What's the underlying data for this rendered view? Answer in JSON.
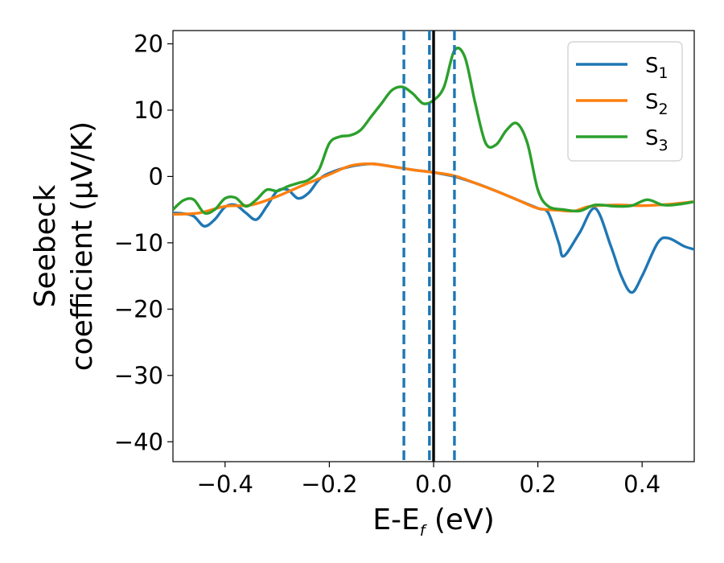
{
  "chart_data": {
    "type": "line",
    "xlabel": {
      "main": "E-E",
      "sub": "f",
      "unit": " (eV)"
    },
    "ylabel": {
      "line1": "Seebeck",
      "line2": "coefficient  (μV/K)"
    },
    "xlim": [
      -0.5,
      0.5
    ],
    "ylim": [
      -43,
      22
    ],
    "xticks": [
      -0.4,
      -0.2,
      0.0,
      0.2,
      0.4
    ],
    "xtick_labels": [
      "−0.4",
      "−0.2",
      "0.0",
      "0.2",
      "0.4"
    ],
    "yticks": [
      -40,
      -30,
      -20,
      -10,
      0,
      10,
      20
    ],
    "ytick_labels": [
      "−40",
      "−30",
      "−20",
      "−10",
      "0",
      "10",
      "20"
    ],
    "grid": false,
    "legend_placement": "top-right",
    "series": [
      {
        "name": "S",
        "sub": "1",
        "color": "#1f77b4",
        "x": [
          -0.5,
          -0.48,
          -0.46,
          -0.44,
          -0.42,
          -0.4,
          -0.38,
          -0.36,
          -0.34,
          -0.32,
          -0.3,
          -0.28,
          -0.26,
          -0.24,
          -0.22,
          -0.2,
          -0.16,
          -0.12,
          -0.08,
          -0.04,
          0.0,
          0.04,
          0.08,
          0.12,
          0.16,
          0.2,
          0.22,
          0.24,
          0.25,
          0.28,
          0.31,
          0.34,
          0.36,
          0.38,
          0.4,
          0.43,
          0.45,
          0.48,
          0.5
        ],
        "y": [
          -5.5,
          -5.6,
          -6,
          -7.5,
          -6.5,
          -4.6,
          -4.3,
          -5.5,
          -6.5,
          -4.5,
          -2.2,
          -2,
          -3.3,
          -2.5,
          -0.5,
          0.5,
          1.5,
          1.9,
          1.5,
          1.0,
          0.6,
          0,
          -1,
          -2.2,
          -3.5,
          -4.8,
          -5.5,
          -10,
          -12,
          -8.5,
          -4.8,
          -10.5,
          -15,
          -17.5,
          -15,
          -10,
          -9.3,
          -10.5,
          -11
        ]
      },
      {
        "name": "S",
        "sub": "2",
        "color": "#ff7f0e",
        "x": [
          -0.5,
          -0.45,
          -0.4,
          -0.35,
          -0.3,
          -0.25,
          -0.2,
          -0.16,
          -0.12,
          -0.08,
          -0.04,
          0.0,
          0.04,
          0.08,
          0.12,
          0.16,
          0.2,
          0.24,
          0.27,
          0.3,
          0.35,
          0.4,
          0.45,
          0.5
        ],
        "y": [
          -5.7,
          -5.5,
          -4.5,
          -4.3,
          -3,
          -1.3,
          0.3,
          1.6,
          1.9,
          1.5,
          1.0,
          0.6,
          0.1,
          -1,
          -2.2,
          -3.5,
          -4.8,
          -5.1,
          -5.2,
          -4.5,
          -4.3,
          -4.4,
          -4.2,
          -3.8
        ]
      },
      {
        "name": "S",
        "sub": "3",
        "color": "#2ca02c",
        "x": [
          -0.5,
          -0.48,
          -0.46,
          -0.44,
          -0.42,
          -0.4,
          -0.38,
          -0.36,
          -0.34,
          -0.32,
          -0.3,
          -0.28,
          -0.26,
          -0.24,
          -0.22,
          -0.2,
          -0.18,
          -0.16,
          -0.14,
          -0.12,
          -0.1,
          -0.08,
          -0.06,
          -0.04,
          -0.02,
          0.0,
          0.02,
          0.04,
          0.06,
          0.08,
          0.1,
          0.12,
          0.14,
          0.16,
          0.18,
          0.2,
          0.22,
          0.25,
          0.28,
          0.31,
          0.35,
          0.38,
          0.41,
          0.44,
          0.47,
          0.5
        ],
        "y": [
          -5,
          -3.6,
          -3.5,
          -5.5,
          -5,
          -3.3,
          -3.2,
          -4.5,
          -3.5,
          -2,
          -2.2,
          -1.5,
          -1,
          -0.5,
          1,
          5,
          6,
          6.2,
          7,
          9,
          11,
          13,
          13.5,
          12.5,
          11,
          11.5,
          13.5,
          19,
          18,
          11,
          5,
          4.8,
          7,
          8,
          5,
          -2,
          -4.5,
          -5,
          -5.2,
          -4.3,
          -4.5,
          -4.4,
          -3.5,
          -4.3,
          -4.2,
          -3.8
        ]
      }
    ],
    "vlines": [
      {
        "x": -0.057,
        "style": "dashed",
        "color": "#1f77b4"
      },
      {
        "x": -0.008,
        "style": "dashed",
        "color": "#1f77b4"
      },
      {
        "x": 0.04,
        "style": "dashed",
        "color": "#1f77b4"
      },
      {
        "x": 0.0,
        "style": "solid",
        "color": "#000000"
      }
    ]
  }
}
